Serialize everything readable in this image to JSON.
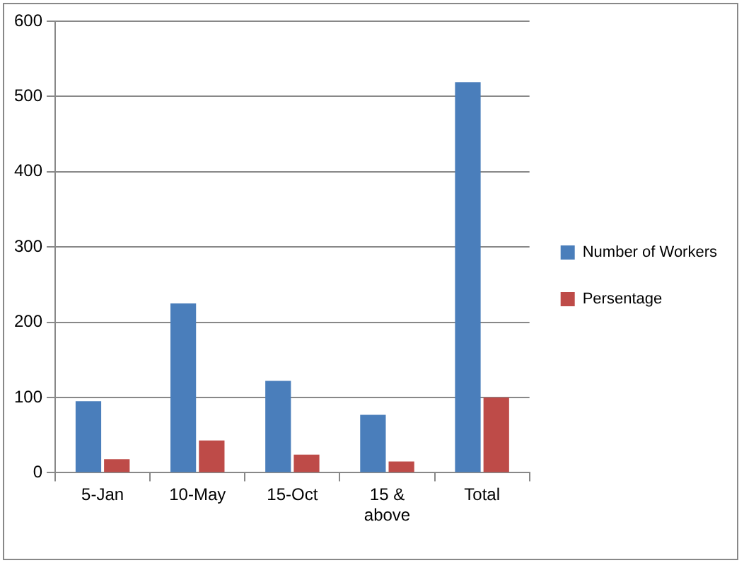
{
  "chart_data": {
    "type": "bar",
    "categories": [
      "5-Jan",
      "10-May",
      "15-Oct",
      "15 & above",
      "Total"
    ],
    "series": [
      {
        "name": "Number of Workers",
        "color": "#4a7ebb",
        "values": [
          95,
          225,
          122,
          77,
          519
        ]
      },
      {
        "name": "Persentage",
        "color": "#be4b48",
        "values": [
          18,
          43,
          24,
          15,
          100
        ]
      }
    ],
    "ylim": [
      0,
      600
    ],
    "yticks": [
      0,
      100,
      200,
      300,
      400,
      500,
      600
    ],
    "grid": "y",
    "legend": "right"
  }
}
